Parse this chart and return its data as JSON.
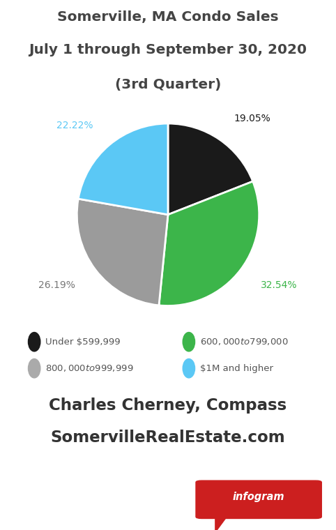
{
  "title_line1": "Somerville, MA Condo Sales",
  "title_line2": "July 1 through September 30, 2020",
  "title_line3": "(3rd Quarter)",
  "slices": [
    19.05,
    32.54,
    26.19,
    22.22
  ],
  "labels": [
    "Under $599,999",
    "$600,000 to $799,000",
    "$800,000 to $999,999",
    "$1M and higher"
  ],
  "colors": [
    "#1a1a1a",
    "#3cb54a",
    "#9b9b9b",
    "#5bc8f5"
  ],
  "pct_labels": [
    "19.05%",
    "32.54%",
    "26.19%",
    "22.22%"
  ],
  "pct_colors": [
    "#1a1a1a",
    "#3cb54a",
    "#777777",
    "#5bc8f5"
  ],
  "legend_colors": [
    "#1a1a1a",
    "#3cb54a",
    "#aaaaaa",
    "#5bc8f5"
  ],
  "footer_line1": "Charles Cherney, Compass",
  "footer_line2": "SomervilleRealEstate.com",
  "bg_color": "#ffffff",
  "title_color": "#444444",
  "footer_color": "#333333",
  "legend_text_color": "#555555",
  "infogram_color": "#cc1f1f"
}
